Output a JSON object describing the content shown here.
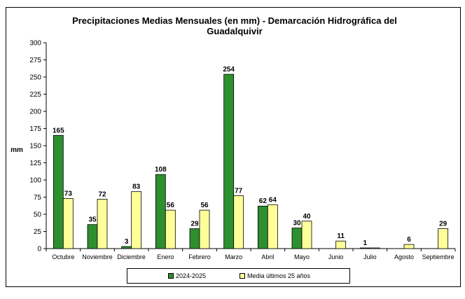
{
  "chart_data": {
    "type": "bar",
    "title": "Precipitaciones Medias Mensuales (en mm) - Demarcación Hidrográfica del Guadalquivir",
    "ylabel": "mm",
    "xlabel": "",
    "ylim": [
      0,
      300
    ],
    "yticks": [
      "0",
      "25",
      "50",
      "75",
      "100",
      "125",
      "150",
      "175",
      "200",
      "225",
      "250",
      "275",
      "300"
    ],
    "grid": false,
    "legend_position": "bottom",
    "categories": [
      "Octubre",
      "Noviembre",
      "Diciembre",
      "Enero",
      "Febrero",
      "Marzo",
      "Abril",
      "Mayo",
      "Junio",
      "Julio",
      "Agosto",
      "Septiembre"
    ],
    "series": [
      {
        "name": "2024-2025",
        "color": "#2d8f2d",
        "values": [
          165,
          35,
          3,
          108,
          29,
          254,
          62,
          30,
          0,
          1,
          0,
          0
        ],
        "labels": [
          "165",
          "35",
          "3",
          "108",
          "29",
          "254",
          "62",
          "30",
          "",
          "1",
          "",
          ""
        ]
      },
      {
        "name": "Media últimos 25 años",
        "color": "#ffff99",
        "values": [
          73,
          72,
          83,
          56,
          56,
          77,
          64,
          40,
          11,
          1,
          6,
          29
        ],
        "labels": [
          "73",
          "72",
          "83",
          "56",
          "56",
          "77",
          "64",
          "40",
          "11",
          "",
          "6",
          "29"
        ]
      }
    ]
  }
}
